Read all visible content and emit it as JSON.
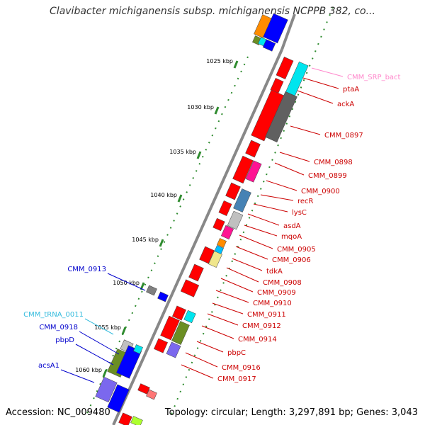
{
  "header": {
    "title": "Clavibacter michiganensis subsp. michiganensis NCPPB 382, co..."
  },
  "footer": {
    "accession": "Accession: NC_009480",
    "topology": "Topology: circular; Length: 3,297,891 bp; Genes: 3,043"
  },
  "colors": {
    "backbone": "#888888",
    "tick": "#2e8b2e",
    "reverse_label": "#cc0000",
    "forward_label": "#0000cc",
    "rna_label": "#33bbdd",
    "srp_label": "#ff88cc"
  },
  "ticks": [
    {
      "label": "1025 kbp"
    },
    {
      "label": "1030 kbp"
    },
    {
      "label": "1035 kbp"
    },
    {
      "label": "1040 kbp"
    },
    {
      "label": "1045 kbp"
    },
    {
      "label": "1050 kbp"
    },
    {
      "label": "1055 kbp"
    },
    {
      "label": "1060 kbp"
    }
  ],
  "right_labels": [
    {
      "text": "CMM_SRP_bact",
      "color": "#ff88cc"
    },
    {
      "text": "ptaA",
      "color": "#cc0000"
    },
    {
      "text": "ackA",
      "color": "#cc0000"
    },
    {
      "text": "CMM_0897",
      "color": "#cc0000"
    },
    {
      "text": "CMM_0898",
      "color": "#cc0000"
    },
    {
      "text": "CMM_0899",
      "color": "#cc0000"
    },
    {
      "text": "CMM_0900",
      "color": "#cc0000"
    },
    {
      "text": "recR",
      "color": "#cc0000"
    },
    {
      "text": "lysC",
      "color": "#cc0000"
    },
    {
      "text": "asdA",
      "color": "#cc0000"
    },
    {
      "text": "mqoA",
      "color": "#cc0000"
    },
    {
      "text": "CMM_0905",
      "color": "#cc0000"
    },
    {
      "text": "CMM_0906",
      "color": "#cc0000"
    },
    {
      "text": "tdkA",
      "color": "#cc0000"
    },
    {
      "text": "CMM_0908",
      "color": "#cc0000"
    },
    {
      "text": "CMM_0909",
      "color": "#cc0000"
    },
    {
      "text": "CMM_0910",
      "color": "#cc0000"
    },
    {
      "text": "CMM_0911",
      "color": "#cc0000"
    },
    {
      "text": "CMM_0912",
      "color": "#cc0000"
    },
    {
      "text": "CMM_0914",
      "color": "#cc0000"
    },
    {
      "text": "pbpC",
      "color": "#cc0000"
    },
    {
      "text": "CMM_0916",
      "color": "#cc0000"
    },
    {
      "text": "CMM_0917",
      "color": "#cc0000"
    }
  ],
  "left_labels": [
    {
      "text": "CMM_0913",
      "color": "#0000cc"
    },
    {
      "text": "CMM_tRNA_0011",
      "color": "#33bbdd"
    },
    {
      "text": "CMM_0918",
      "color": "#0000cc"
    },
    {
      "text": "pbpD",
      "color": "#0000cc"
    },
    {
      "text": "acsA1",
      "color": "#0000cc"
    }
  ]
}
